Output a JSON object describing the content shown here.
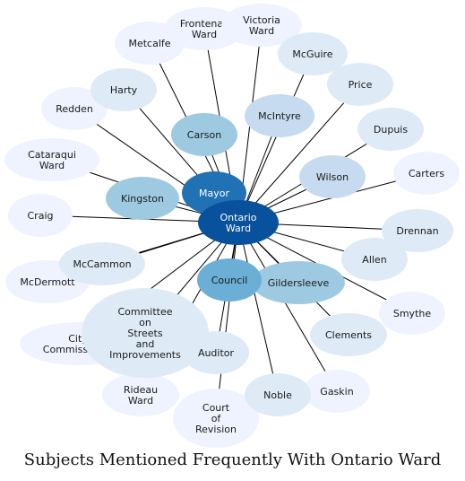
{
  "title": "Subjects Mentioned Frequently With Ontario Ward",
  "center": {
    "label": "Ontario\nWard",
    "color": "#08519c"
  },
  "nodes": [
    {
      "id": "council",
      "label": "Council",
      "color": "#6baed6"
    },
    {
      "id": "gildersleeve",
      "label": "Gildersleeve",
      "color": "#9ecae1"
    },
    {
      "id": "mayor",
      "label": "Mayor",
      "color": "#2171b5"
    },
    {
      "id": "kingston",
      "label": "Kingston",
      "color": "#9ecae1"
    },
    {
      "id": "carson",
      "label": "Carson",
      "color": "#9ecae1"
    },
    {
      "id": "mcintyre",
      "label": "McIntyre",
      "color": "#c6dbef"
    },
    {
      "id": "wilson",
      "label": "Wilson",
      "color": "#c6dbef"
    },
    {
      "id": "committee",
      "label": "Committee\non\nStreets\nand\nImprovements",
      "color": "#deebf7"
    },
    {
      "id": "auditor",
      "label": "Auditor",
      "color": "#deebf7"
    },
    {
      "id": "city-commissioner",
      "label": "City\nCommissioner",
      "color": "#eff3ff"
    },
    {
      "id": "mccammon",
      "label": "McCammon",
      "color": "#deebf7"
    },
    {
      "id": "harty",
      "label": "Harty",
      "color": "#deebf7"
    },
    {
      "id": "mcguire",
      "label": "McGuire",
      "color": "#deebf7"
    },
    {
      "id": "price",
      "label": "Price",
      "color": "#deebf7"
    },
    {
      "id": "dupuis",
      "label": "Dupuis",
      "color": "#deebf7"
    },
    {
      "id": "drennan",
      "label": "Drennan",
      "color": "#deebf7"
    },
    {
      "id": "allen",
      "label": "Allen",
      "color": "#deebf7"
    },
    {
      "id": "clements",
      "label": "Clements",
      "color": "#deebf7"
    },
    {
      "id": "noble",
      "label": "Noble",
      "color": "#deebf7"
    },
    {
      "id": "metcalfe",
      "label": "Metcalfe",
      "color": "#eff3ff"
    },
    {
      "id": "frontenac",
      "label": "Frontenac\nWard",
      "color": "#eff3ff"
    },
    {
      "id": "victoria",
      "label": "Victoria\nWard",
      "color": "#eff3ff"
    },
    {
      "id": "redden",
      "label": "Redden",
      "color": "#eff3ff"
    },
    {
      "id": "cataraqui",
      "label": "Cataraqui\nWard",
      "color": "#eff3ff"
    },
    {
      "id": "craig",
      "label": "Craig",
      "color": "#eff3ff"
    },
    {
      "id": "mcdermott",
      "label": "McDermott",
      "color": "#eff3ff"
    },
    {
      "id": "carters",
      "label": "Carters",
      "color": "#eff3ff"
    },
    {
      "id": "smythe",
      "label": "Smythe",
      "color": "#eff3ff"
    },
    {
      "id": "gaskin",
      "label": "Gaskin",
      "color": "#eff3ff"
    },
    {
      "id": "rideau",
      "label": "Rideau\nWard",
      "color": "#eff3ff"
    },
    {
      "id": "court",
      "label": "Court\nof\nRevision",
      "color": "#eff3ff"
    }
  ],
  "edge_color": "#000000"
}
